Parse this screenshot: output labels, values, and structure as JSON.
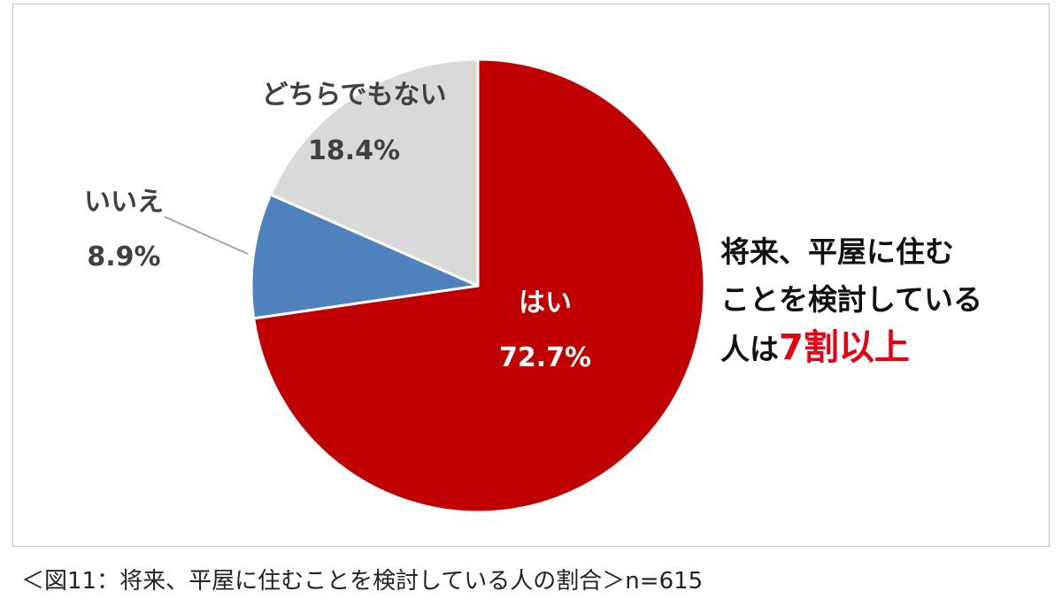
{
  "chart_data": {
    "type": "pie",
    "slices": [
      {
        "label": "はい",
        "value": 72.7,
        "value_label": "72.7%",
        "color": "#c00000",
        "label_color": "#ffffff"
      },
      {
        "label": "いいえ",
        "value": 8.9,
        "value_label": "8.9%",
        "color": "#4f81bd",
        "label_color": "#404040"
      },
      {
        "label": "どちらでもない",
        "value": 18.4,
        "value_label": "18.4%",
        "color": "#d9d9d9",
        "label_color": "#404040"
      }
    ],
    "start": "12 o'clock",
    "direction": "clockwise",
    "legend": "none"
  },
  "callout": {
    "line1": "将来、平屋に住む",
    "line2": "ことを検討している",
    "line3_prefix": "人は",
    "line3_highlight": "7割以上",
    "highlight_color": "#e60012"
  },
  "caption": "＜図11：将来、平屋に住むことを検討している人の割合＞n=615"
}
